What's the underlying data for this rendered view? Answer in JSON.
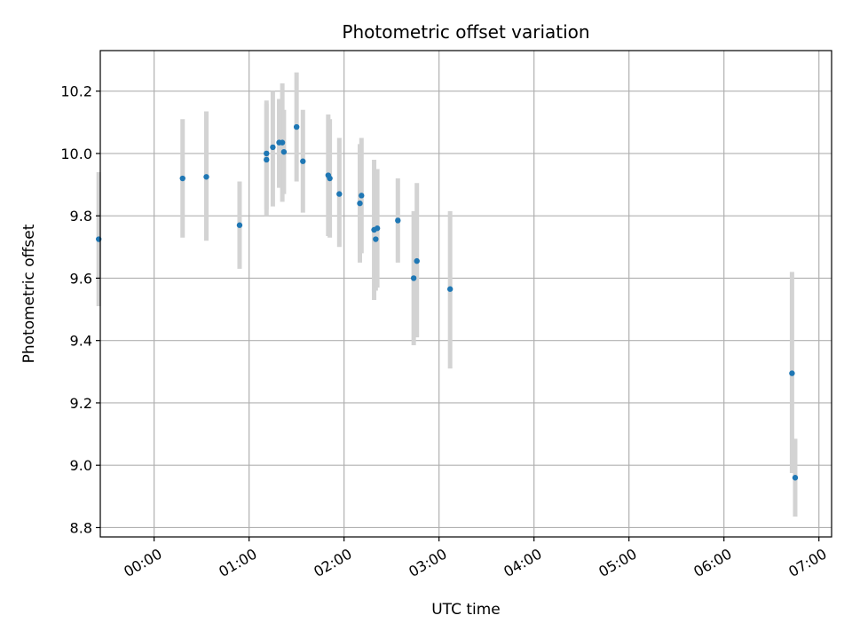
{
  "chart_data": {
    "type": "scatter",
    "title": "Photometric offset variation",
    "xlabel": "UTC time",
    "ylabel": "Photometric offset",
    "x_unit": "UTC time (HH:MM)",
    "xlim": [
      "-00:34",
      "07:08"
    ],
    "ylim": [
      8.77,
      10.33
    ],
    "xticks": [
      "00:00",
      "01:00",
      "02:00",
      "03:00",
      "04:00",
      "05:00",
      "06:00",
      "07:00"
    ],
    "yticks": [
      "8.8",
      "9.0",
      "9.2",
      "9.4",
      "9.6",
      "9.8",
      "10.0",
      "10.2"
    ],
    "grid": true,
    "point_color": "#1f77b4",
    "errorbar_color": "#d3d3d3",
    "points": [
      {
        "x": "-00:35",
        "y": 9.725,
        "err_low": 9.51,
        "err_high": 9.94
      },
      {
        "x": "00:18",
        "y": 9.92,
        "err_low": 9.73,
        "err_high": 10.11
      },
      {
        "x": "00:33",
        "y": 9.925,
        "err_low": 9.72,
        "err_high": 10.135
      },
      {
        "x": "00:54",
        "y": 9.77,
        "err_low": 9.63,
        "err_high": 9.91
      },
      {
        "x": "01:11",
        "y": 10.0,
        "err_low": 9.82,
        "err_high": 10.17
      },
      {
        "x": "01:11",
        "y": 9.98,
        "err_low": 9.8,
        "err_high": 10.16
      },
      {
        "x": "01:15",
        "y": 10.02,
        "err_low": 9.83,
        "err_high": 10.2
      },
      {
        "x": "01:19",
        "y": 10.035,
        "err_low": 9.89,
        "err_high": 10.175
      },
      {
        "x": "01:21",
        "y": 10.035,
        "err_low": 9.845,
        "err_high": 10.225
      },
      {
        "x": "01:22",
        "y": 10.005,
        "err_low": 9.87,
        "err_high": 10.14
      },
      {
        "x": "01:30",
        "y": 10.085,
        "err_low": 9.91,
        "err_high": 10.26
      },
      {
        "x": "01:34",
        "y": 9.975,
        "err_low": 9.81,
        "err_high": 10.14
      },
      {
        "x": "01:50",
        "y": 9.93,
        "err_low": 9.735,
        "err_high": 10.125
      },
      {
        "x": "01:51",
        "y": 9.92,
        "err_low": 9.73,
        "err_high": 10.11
      },
      {
        "x": "01:57",
        "y": 9.87,
        "err_low": 9.7,
        "err_high": 10.05
      },
      {
        "x": "02:10",
        "y": 9.84,
        "err_low": 9.65,
        "err_high": 10.03
      },
      {
        "x": "02:11",
        "y": 9.865,
        "err_low": 9.68,
        "err_high": 10.05
      },
      {
        "x": "02:19",
        "y": 9.755,
        "err_low": 9.53,
        "err_high": 9.98
      },
      {
        "x": "02:20",
        "y": 9.725,
        "err_low": 9.56,
        "err_high": 9.89
      },
      {
        "x": "02:21",
        "y": 9.76,
        "err_low": 9.57,
        "err_high": 9.95
      },
      {
        "x": "02:34",
        "y": 9.785,
        "err_low": 9.65,
        "err_high": 9.92
      },
      {
        "x": "02:44",
        "y": 9.6,
        "err_low": 9.385,
        "err_high": 9.815
      },
      {
        "x": "02:46",
        "y": 9.655,
        "err_low": 9.41,
        "err_high": 9.905
      },
      {
        "x": "03:07",
        "y": 9.565,
        "err_low": 9.31,
        "err_high": 9.815
      },
      {
        "x": "06:43",
        "y": 9.295,
        "err_low": 8.975,
        "err_high": 9.62
      },
      {
        "x": "06:45",
        "y": 8.96,
        "err_low": 8.835,
        "err_high": 9.085
      }
    ]
  }
}
